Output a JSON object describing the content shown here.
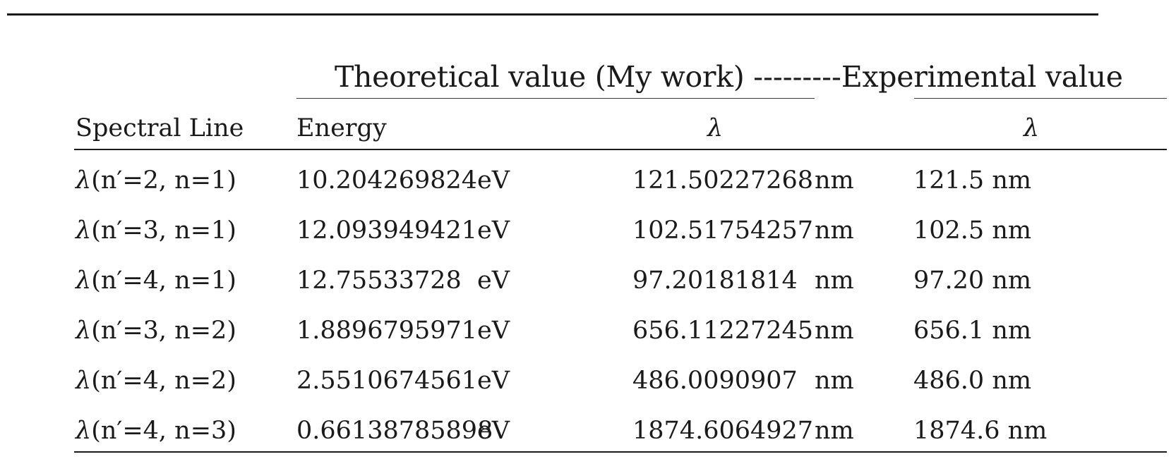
{
  "table": {
    "group_header": {
      "theoretical": "Theoretical value (My work) ",
      "dashes": "---------",
      "experimental": "Experimental value"
    },
    "columns": {
      "spectral_line": "Spectral Line",
      "energy": "Energy",
      "lambda_theory": "λ",
      "lambda_exp": "λ"
    },
    "rows": [
      {
        "lam": "λ",
        "transition": "(n′=2, n=1)",
        "energy": "10.204269824",
        "energy_unit": "eV",
        "wavelength": "121.50227268",
        "wavelength_unit": "nm",
        "experimental": "121.5 nm"
      },
      {
        "lam": "λ",
        "transition": "(n′=3, n=1)",
        "energy": "12.093949421",
        "energy_unit": "eV",
        "wavelength": "102.51754257",
        "wavelength_unit": "nm",
        "experimental": "102.5 nm"
      },
      {
        "lam": "λ",
        "transition": "(n′=4, n=1)",
        "energy": "12.75533728",
        "energy_unit": "eV",
        "wavelength": "97.20181814",
        "wavelength_unit": "nm",
        "experimental": "97.20 nm"
      },
      {
        "lam": "λ",
        "transition": "(n′=3, n=2)",
        "energy": "1.8896795971",
        "energy_unit": "eV",
        "wavelength": "656.11227245",
        "wavelength_unit": "nm",
        "experimental": "656.1 nm"
      },
      {
        "lam": "λ",
        "transition": "(n′=4, n=2)",
        "energy": "2.5510674561",
        "energy_unit": "eV",
        "wavelength": "486.0090907",
        "wavelength_unit": "nm",
        "experimental": "486.0 nm"
      },
      {
        "lam": "λ",
        "transition": "(n′=4, n=3)",
        "energy": "0.66138785898",
        "energy_unit": "eV",
        "wavelength": "1874.6064927",
        "wavelength_unit": "nm",
        "experimental": "1874.6 nm"
      }
    ]
  }
}
